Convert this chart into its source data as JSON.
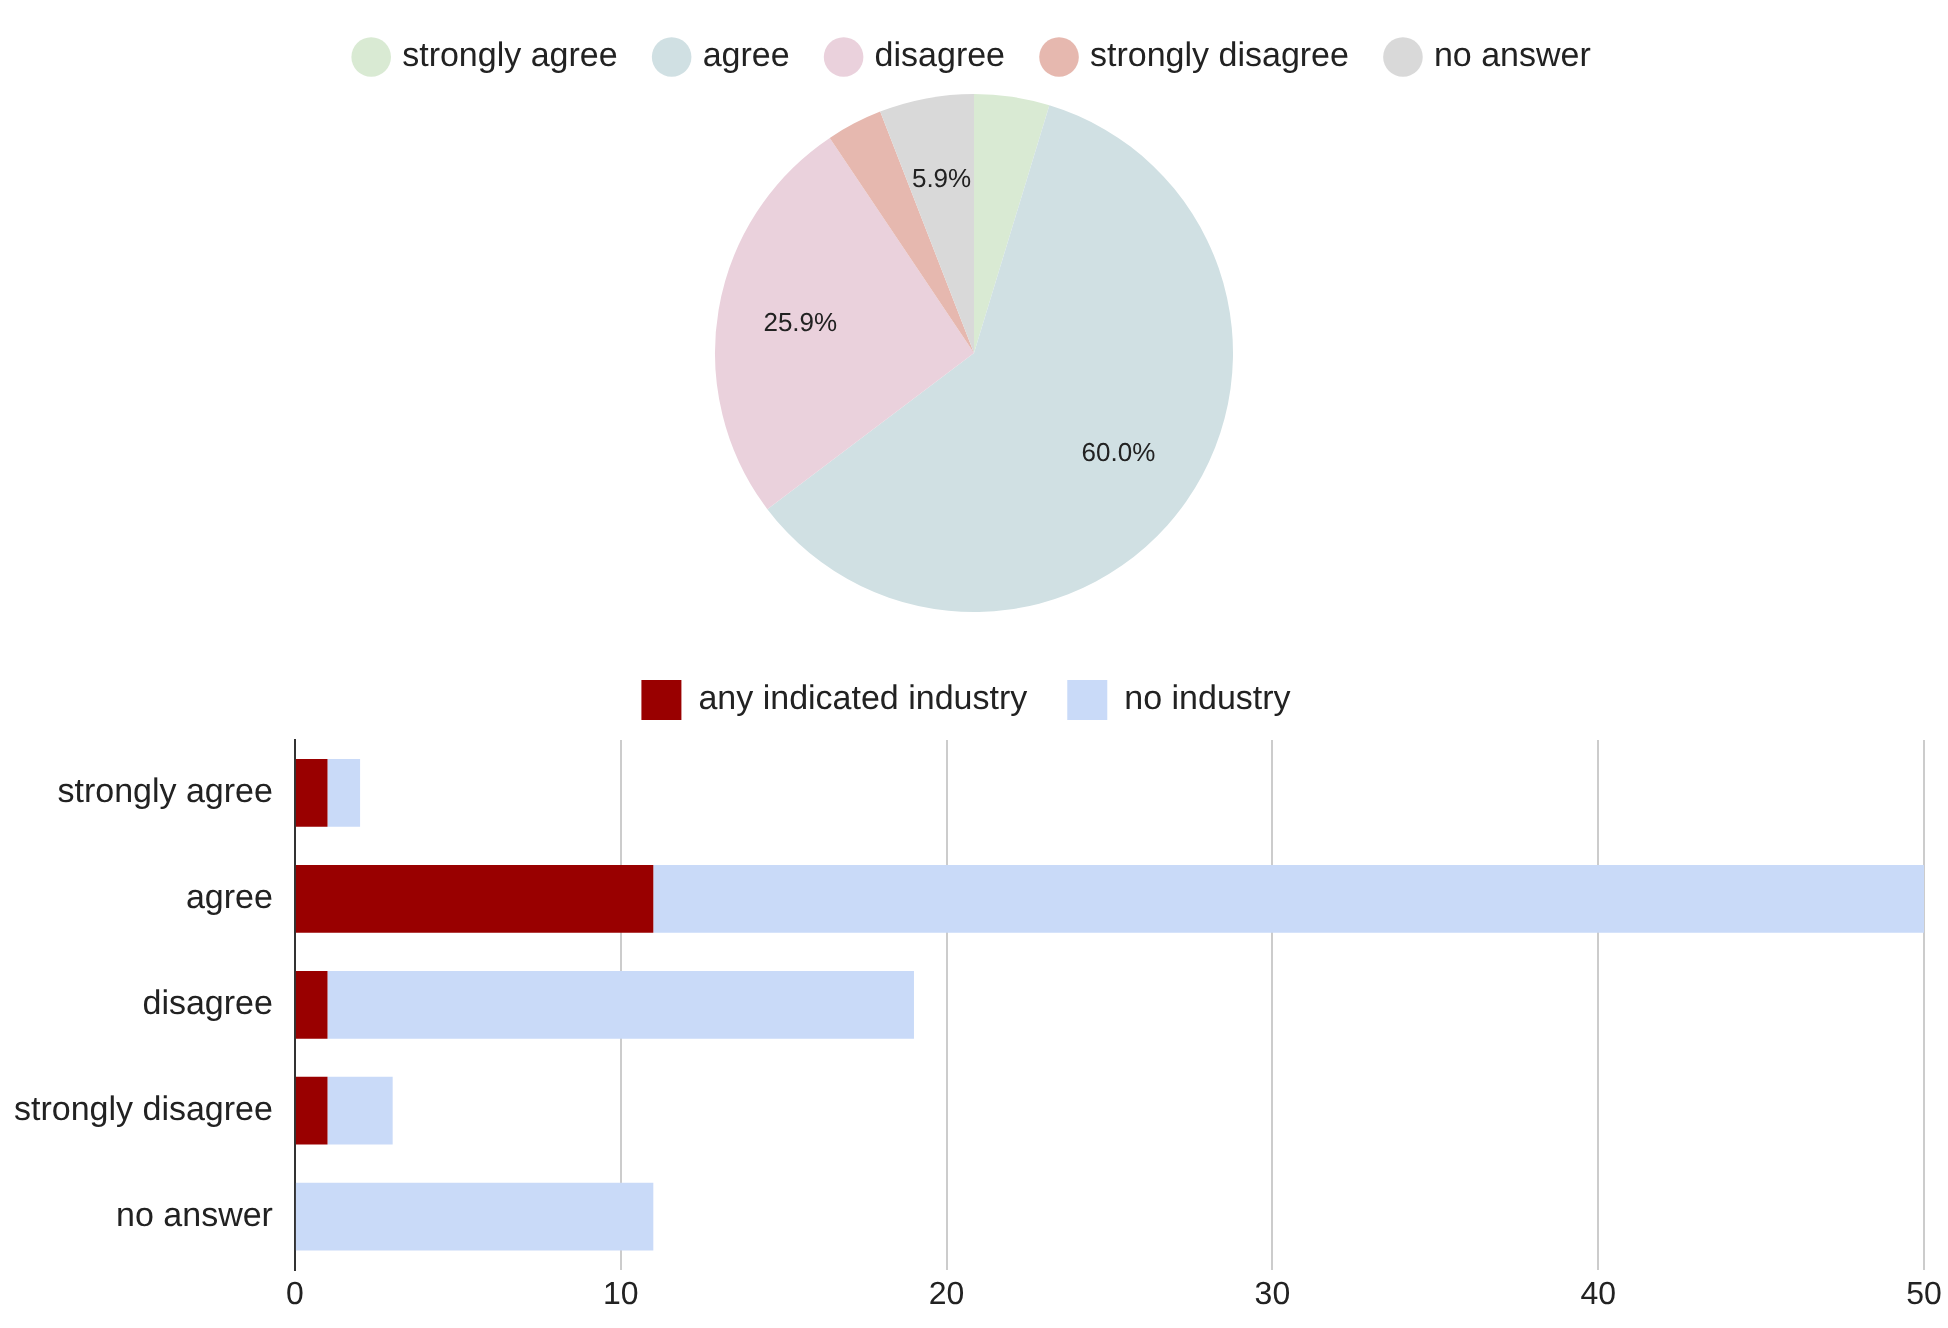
{
  "chart_data": [
    {
      "type": "pie",
      "categories": [
        "strongly agree",
        "agree",
        "disagree",
        "strongly disagree",
        "no answer"
      ],
      "values": [
        4.7,
        60.0,
        25.9,
        3.5,
        5.9
      ],
      "colors": [
        "#d9ead3",
        "#d0e0e3",
        "#ead1dc",
        "#e6b8af",
        "#d9d9d9"
      ],
      "value_labels": [
        null,
        "60.0%",
        "25.9%",
        null,
        "5.9%"
      ],
      "legend": "top"
    },
    {
      "type": "bar",
      "orientation": "horizontal",
      "stacked": true,
      "categories": [
        "strongly agree",
        "agree",
        "disagree",
        "strongly disagree",
        "no answer"
      ],
      "series": [
        {
          "name": "any indicated industry",
          "color": "#990000",
          "values": [
            1,
            11,
            1,
            1,
            0
          ]
        },
        {
          "name": "no industry",
          "color": "#c9daf8",
          "values": [
            1,
            39,
            18,
            2,
            11
          ]
        }
      ],
      "xlim": [
        0,
        50
      ],
      "xticks": [
        0,
        10,
        20,
        30,
        40,
        50
      ],
      "grid": "x",
      "legend": "top"
    }
  ]
}
